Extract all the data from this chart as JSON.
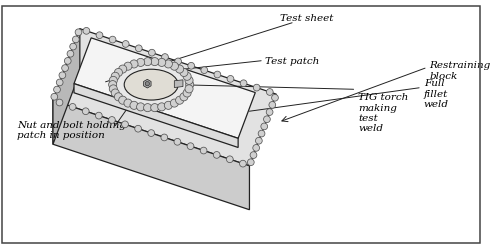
{
  "bg_color": "#ffffff",
  "border_color": "#555555",
  "labels": {
    "test_sheet": "Test sheet",
    "test_patch": "Test patch",
    "full_fillet_weld": "Full\nfillet\nweld",
    "tig_torch": "TIG torch\nmaking\ntest\nweld",
    "nut_bolt": "Nut and bolt holding\npatch in position",
    "restraining_block": "Restraining\nblock"
  },
  "line_color": "#222222",
  "label_fontsize": 7.5
}
